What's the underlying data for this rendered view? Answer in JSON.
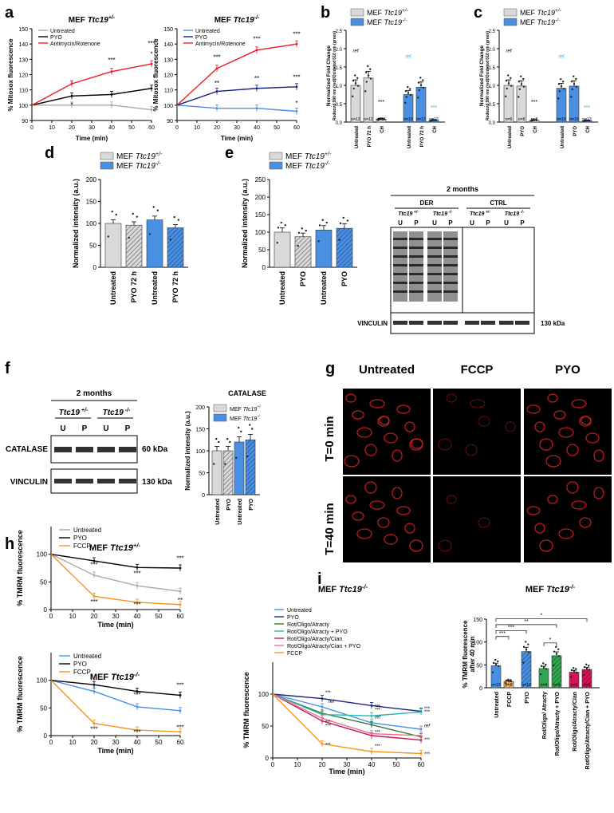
{
  "colors": {
    "het": "#d9d9d9",
    "ko": "#4a90e2",
    "untreated_het": "#a9a9a9",
    "untreated_ko": "#4a90e2",
    "pyo": "#000000",
    "antimycin": "#ee1c25",
    "fccp": "#f7941d",
    "sig_ko": "#29a8e0",
    "green": "#33a652",
    "magenta": "#d4145a"
  },
  "panels": {
    "a": "a",
    "b": "b",
    "c": "c",
    "d": "d",
    "e": "e",
    "f": "f",
    "g": "g",
    "h": "h",
    "i": "i"
  },
  "genotype": {
    "prefix": "MEF",
    "gene": "Ttc19",
    "het_sup": "+/-",
    "ko_sup": "-/-"
  },
  "a": {
    "ylabel": "% Mitosox fluorescence",
    "xlabel": "Time (min)",
    "xticks": [
      "0",
      "10",
      "20",
      "30",
      "40",
      "50",
      "60"
    ],
    "yticks": [
      "90",
      "100",
      "110",
      "120",
      "130",
      "140",
      "150"
    ],
    "legend": [
      "Untreated",
      "PYO",
      "Antimycin/Rotenone"
    ],
    "left_series": {
      "untreated": [
        100,
        100,
        100,
        97
      ],
      "pyo": [
        100,
        106,
        107,
        111
      ],
      "antimycin": [
        100,
        114,
        122,
        127
      ]
    },
    "right_series": {
      "untreated": [
        100,
        98,
        98,
        96
      ],
      "pyo": [
        100,
        109,
        111,
        112
      ],
      "antimycin": [
        100,
        124,
        136,
        140
      ]
    },
    "x": [
      0,
      20,
      40,
      60
    ],
    "stars_left": [
      "*",
      "***",
      "***",
      "*",
      "*"
    ],
    "stars_right": [
      "***",
      "***",
      "***",
      "**",
      "**",
      "***",
      "*"
    ]
  },
  "b": {
    "ylabel": "Normalized Fold Change",
    "ylabel2": "Reduced 590 nm (red)/Oxidated 510 nm (green)",
    "ytick_labels": [
      "0.0",
      "0.5",
      "1.0",
      "1.5",
      "2.0",
      "2.5"
    ],
    "categories": [
      "Untreated",
      "PYO 72 h",
      "CH",
      "Untreated",
      "PYO 72 h",
      "CH"
    ],
    "values": [
      1.0,
      1.2,
      0.08,
      0.75,
      0.95,
      0.05
    ],
    "n_labels": [
      "n=12",
      "n=12",
      "n=14",
      "n=10",
      "n=12",
      "n=13"
    ],
    "ref": "ref",
    "stars": [
      "***",
      "***"
    ]
  },
  "c": {
    "ylabel": "Normalized Fold Change",
    "ylabel2": "Reduced 590 nm (red)/Oxidated 510 nm (green)",
    "ytick_labels": [
      "0.0",
      "0.5",
      "1.0",
      "1.5",
      "2.0",
      "2.5"
    ],
    "categories": [
      "Untreated",
      "PYO",
      "CH",
      "Untreated",
      "PYO",
      "CH"
    ],
    "values": [
      1.0,
      0.98,
      0.05,
      0.92,
      0.98,
      0.04
    ],
    "n_labels": [
      "n=9",
      "n=8",
      "n=8",
      "n=10",
      "n=15",
      "n=13"
    ],
    "ref": "ref",
    "stars": [
      "***",
      "***"
    ]
  },
  "d": {
    "ylabel": "Normalized intensity (a.u.)",
    "ytick_labels": [
      "0",
      "50",
      "100",
      "150",
      "200"
    ],
    "categories": [
      "Untreated",
      "PYO 72 h",
      "Untreated",
      "PYO 72 h"
    ],
    "values": [
      100,
      96,
      108,
      90
    ]
  },
  "e": {
    "ylabel": "Normalized intensity (a.u.)",
    "ytick_labels": [
      "0",
      "50",
      "100",
      "150",
      "200",
      "250"
    ],
    "categories": [
      "Untreated",
      "PYO",
      "Untreated",
      "PYO"
    ],
    "values": [
      100,
      87,
      106,
      111
    ],
    "blot_title": "2 months",
    "groups": [
      "DER",
      "CTRL"
    ],
    "lanes": [
      "U",
      "P",
      "U",
      "P",
      "U",
      "P",
      "U",
      "P"
    ],
    "vinculin": "VINCULIN",
    "kda": "130 kDa"
  },
  "f": {
    "blot_title": "2 months",
    "lanes": [
      "U",
      "P",
      "U",
      "P"
    ],
    "catalase": "CATALASE",
    "catalase_kda": "60 kDa",
    "vinculin": "VINCULIN",
    "vinculin_kda": "130 kDa",
    "chart_title": "CATALASE",
    "ylabel": "Normalized intensity (a.u.)",
    "ytick_labels": [
      "0",
      "50",
      "100",
      "150",
      "200"
    ],
    "categories": [
      "Untreated",
      "PYO",
      "Untreated",
      "PYO"
    ],
    "values": [
      100,
      100,
      120,
      125
    ]
  },
  "g": {
    "columns": [
      "Untreated",
      "FCCP",
      "PYO"
    ],
    "rows": [
      "T=0 min",
      "T=40 min"
    ]
  },
  "h": {
    "ylabel": "% TMRM fluorescence",
    "xlabel": "Time (min)",
    "xticks": [
      "0",
      "10",
      "20",
      "30",
      "40",
      "50",
      "60"
    ],
    "yticks": [
      "0",
      "50",
      "100"
    ],
    "legend": [
      "Untreated",
      "PYO",
      "FCCP"
    ],
    "x": [
      0,
      20,
      40,
      60
    ],
    "top_series": {
      "untreated": [
        100,
        62,
        43,
        33
      ],
      "pyo": [
        100,
        88,
        76,
        75
      ],
      "fccp": [
        100,
        24,
        13,
        9
      ]
    },
    "bottom_series": {
      "untreated": [
        100,
        80,
        52,
        45
      ],
      "pyo": [
        100,
        92,
        80,
        73
      ],
      "fccp": [
        100,
        22,
        10,
        7
      ]
    },
    "stars_top": [
      "***",
      "***",
      "***",
      "***",
      "***",
      "**"
    ],
    "stars_bottom": [
      "*",
      "***",
      "***",
      "***",
      "***",
      "***"
    ]
  },
  "i": {
    "ylabel": "% TMRM fluorescence",
    "xlabel": "Time (min)",
    "xticks": [
      "0",
      "10",
      "20",
      "30",
      "40",
      "50",
      "60"
    ],
    "yticks": [
      "0",
      "50",
      "100"
    ],
    "legend": [
      "Untreated",
      "PYO",
      "Rot/Oligo/Atracty",
      "Rot/Oligo/Atracty + PYO",
      "Rot/Oligo/Atracty/Cian",
      "Rot/Oligo/Atracty/Cian + PYO",
      "FCCP"
    ],
    "legend_colors": [
      "#4a90e2",
      "#1a237e",
      "#2e7d32",
      "#29b6b6",
      "#c2185b",
      "#ef6f8a",
      "#f7941d"
    ],
    "x": [
      0,
      20,
      40,
      60
    ],
    "series": [
      [
        100,
        80,
        55,
        45
      ],
      [
        100,
        93,
        82,
        73
      ],
      [
        100,
        70,
        52,
        33
      ],
      [
        100,
        68,
        66,
        72
      ],
      [
        100,
        58,
        35,
        28
      ],
      [
        100,
        62,
        38,
        35
      ],
      [
        100,
        22,
        10,
        7
      ]
    ],
    "ref": "ref",
    "bar_ylabel": "% TMRM fluorescence",
    "bar_ylabel2": "after 40 min",
    "bar_yticks": [
      "0",
      "50",
      "100",
      "150"
    ],
    "bar_categories": [
      "Untreated",
      "FCCP",
      "PYO",
      "Rot/Oligo/ Atracty",
      "Rot/Oligo/Atracty + PYO",
      "Rot/Oligo/Atracty/Cian",
      "Rot/Oligo/Atracty/Cian + PYO"
    ],
    "bar_values": [
      48,
      14,
      79,
      42,
      70,
      34,
      40
    ],
    "bar_n": [
      "n=13",
      "n=6",
      "n=10",
      "n=4",
      "n=4",
      "n=3",
      "n=3"
    ],
    "bar_stars": [
      "***",
      "***",
      "**",
      "*",
      "*"
    ]
  },
  "chart_data": [
    {
      "panel": "a-left",
      "type": "line",
      "x": [
        0,
        20,
        40,
        60
      ],
      "series": [
        {
          "name": "Untreated",
          "values": [
            100,
            100,
            100,
            97
          ]
        },
        {
          "name": "PYO",
          "values": [
            100,
            106,
            107,
            111
          ]
        },
        {
          "name": "Antimycin/Rotenone",
          "values": [
            100,
            114,
            122,
            127
          ]
        }
      ],
      "xlabel": "Time (min)",
      "ylabel": "% Mitosox fluorescence",
      "ylim": [
        90,
        150
      ]
    },
    {
      "panel": "a-right",
      "type": "line",
      "x": [
        0,
        20,
        40,
        60
      ],
      "series": [
        {
          "name": "Untreated",
          "values": [
            100,
            98,
            98,
            96
          ]
        },
        {
          "name": "PYO",
          "values": [
            100,
            109,
            111,
            112
          ]
        },
        {
          "name": "Antimycin/Rotenone",
          "values": [
            100,
            124,
            136,
            140
          ]
        }
      ],
      "xlabel": "Time (min)",
      "ylabel": "% Mitosox fluorescence",
      "ylim": [
        90,
        150
      ]
    },
    {
      "panel": "b",
      "type": "bar",
      "categories": [
        "Untreated",
        "PYO 72 h",
        "CH",
        "Untreated",
        "PYO 72 h",
        "CH"
      ],
      "values": [
        1.0,
        1.2,
        0.08,
        0.75,
        0.95,
        0.05
      ],
      "ylim": [
        0,
        2.5
      ]
    },
    {
      "panel": "c",
      "type": "bar",
      "categories": [
        "Untreated",
        "PYO",
        "CH",
        "Untreated",
        "PYO",
        "CH"
      ],
      "values": [
        1.0,
        0.98,
        0.05,
        0.92,
        0.98,
        0.04
      ],
      "ylim": [
        0,
        2.5
      ]
    },
    {
      "panel": "d",
      "type": "bar",
      "categories": [
        "Untreated",
        "PYO 72 h",
        "Untreated",
        "PYO 72 h"
      ],
      "values": [
        100,
        96,
        108,
        90
      ],
      "ylim": [
        0,
        200
      ]
    },
    {
      "panel": "e",
      "type": "bar",
      "categories": [
        "Untreated",
        "PYO",
        "Untreated",
        "PYO"
      ],
      "values": [
        100,
        87,
        106,
        111
      ],
      "ylim": [
        0,
        250
      ]
    },
    {
      "panel": "f",
      "type": "bar",
      "categories": [
        "Untreated",
        "PYO",
        "Untreated",
        "PYO"
      ],
      "values": [
        100,
        100,
        120,
        125
      ],
      "ylim": [
        0,
        200
      ]
    },
    {
      "panel": "h-top",
      "type": "line",
      "x": [
        0,
        20,
        40,
        60
      ],
      "series": [
        {
          "name": "Untreated",
          "values": [
            100,
            62,
            43,
            33
          ]
        },
        {
          "name": "PYO",
          "values": [
            100,
            88,
            76,
            75
          ]
        },
        {
          "name": "FCCP",
          "values": [
            100,
            24,
            13,
            9
          ]
        }
      ],
      "ylim": [
        0,
        150
      ]
    },
    {
      "panel": "h-bottom",
      "type": "line",
      "x": [
        0,
        20,
        40,
        60
      ],
      "series": [
        {
          "name": "Untreated",
          "values": [
            100,
            80,
            52,
            45
          ]
        },
        {
          "name": "PYO",
          "values": [
            100,
            92,
            80,
            73
          ]
        },
        {
          "name": "FCCP",
          "values": [
            100,
            22,
            10,
            7
          ]
        }
      ],
      "ylim": [
        0,
        150
      ]
    },
    {
      "panel": "i-bar",
      "type": "bar",
      "categories": [
        "Untreated",
        "FCCP",
        "PYO",
        "Rot/Oligo/ Atracty",
        "Rot/Oligo/Atracty + PYO",
        "Rot/Oligo/Atracty/Cian",
        "Rot/Oligo/Atracty/Cian + PYO"
      ],
      "values": [
        48,
        14,
        79,
        42,
        70,
        34,
        40
      ],
      "ylim": [
        0,
        150
      ]
    }
  ]
}
